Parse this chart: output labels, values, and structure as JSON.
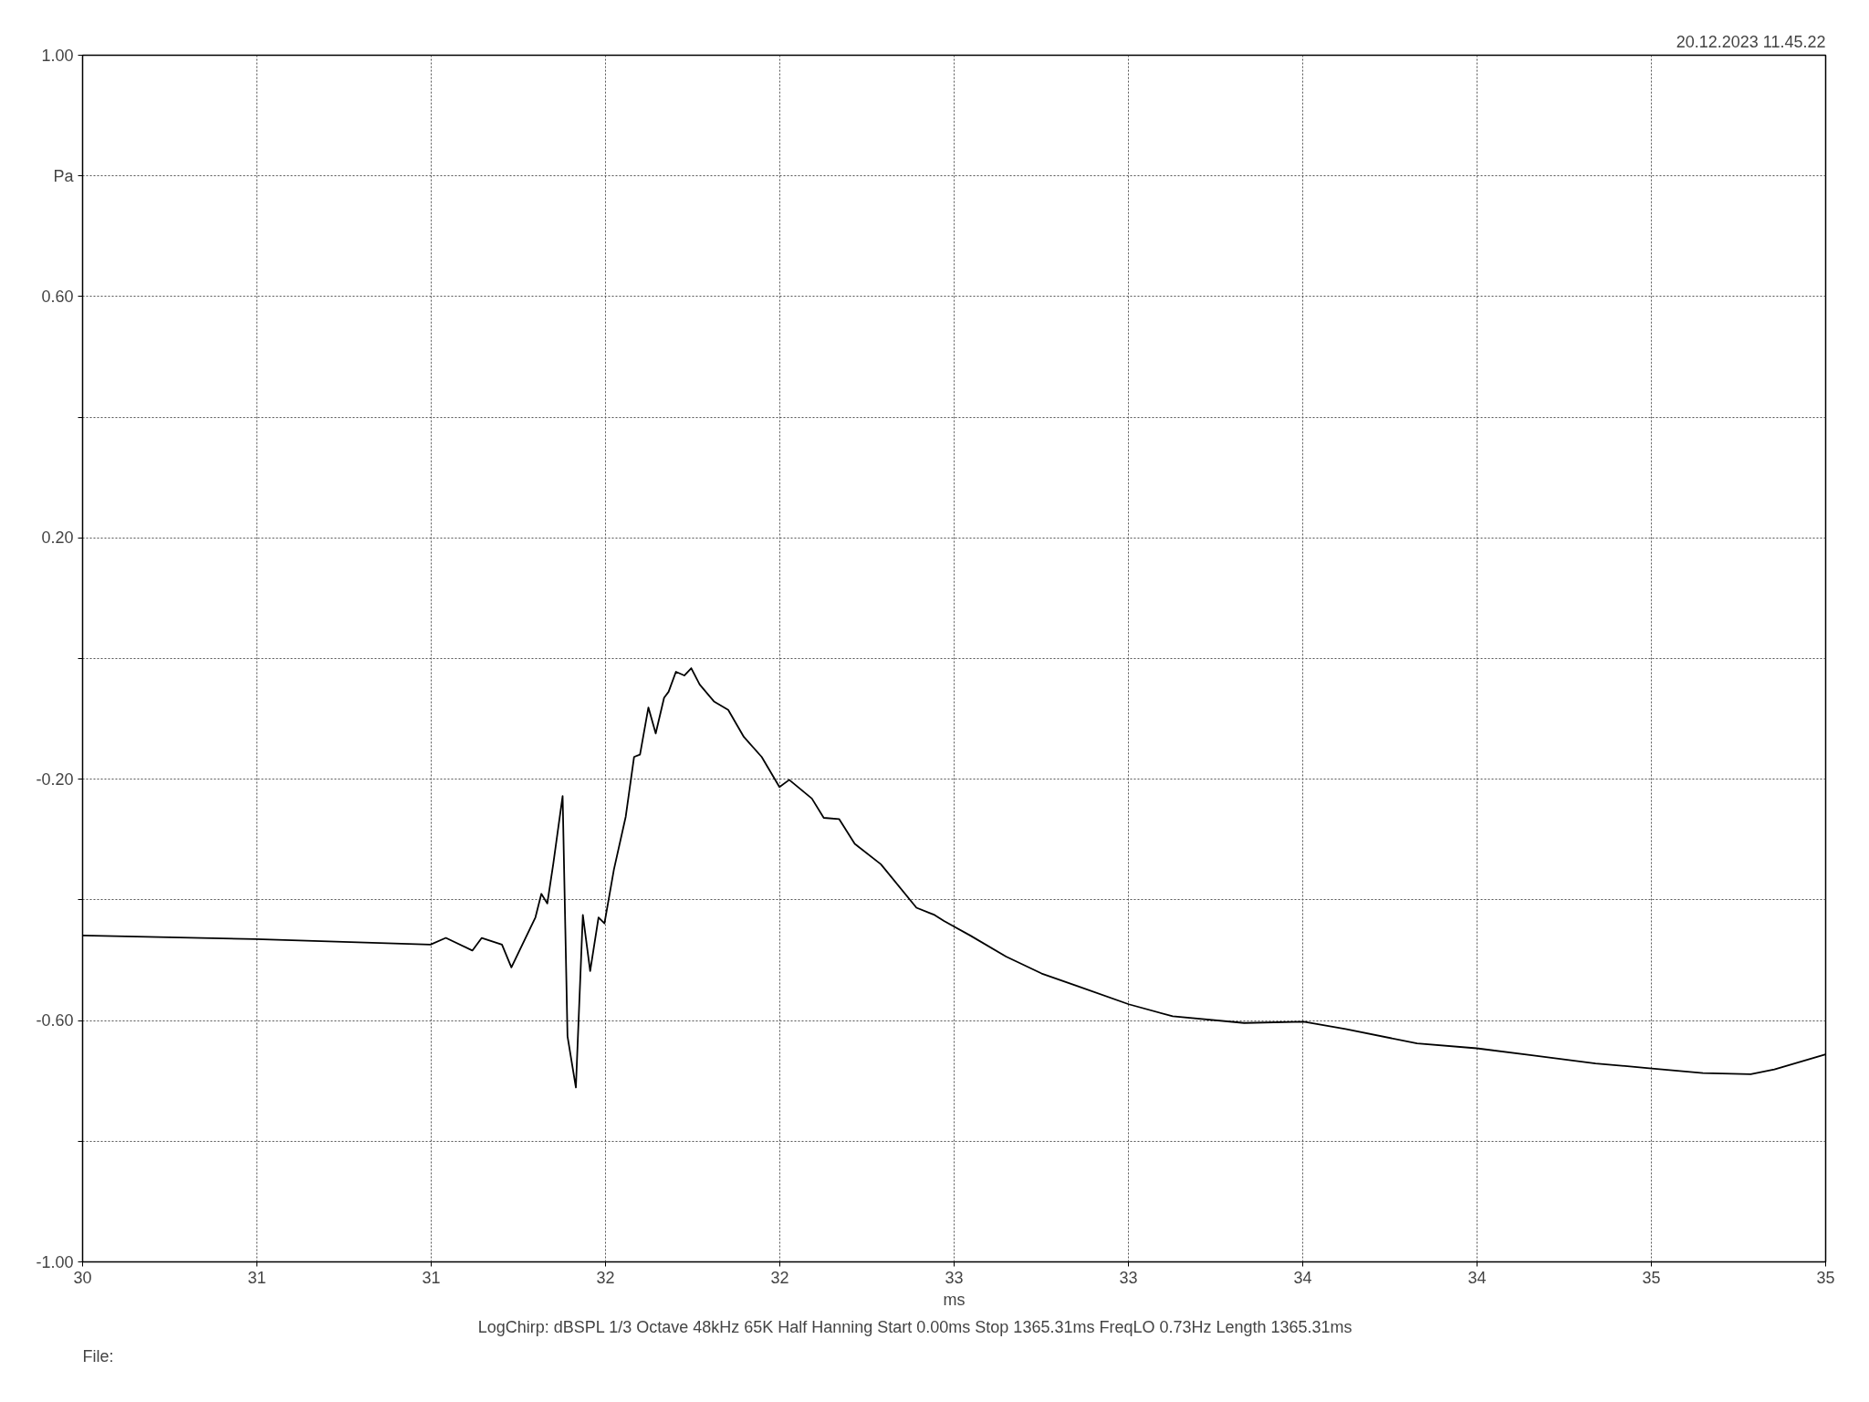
{
  "chart_data": {
    "type": "line",
    "xlabel": "ms",
    "annotations": [
      "20.12.2023 11.45.22",
      "LogChirp:  dBSPL   1/3 Octave   48kHz   65K   Half Hanning   Start 0.00ms   Stop 1365.31ms   FreqLO 0.73Hz   Length 1365.31ms",
      "File:"
    ],
    "xlim": [
      30,
      35
    ],
    "xticks": [
      30,
      {
        "value": 30.5,
        "label": "31"
      },
      31,
      {
        "value": 31.5,
        "label": "32"
      },
      32,
      {
        "value": 32.5,
        "label": "33"
      },
      33,
      {
        "value": 33.5,
        "label": "34"
      },
      34,
      {
        "value": 34.5,
        "label": "35"
      },
      35
    ],
    "ylim": [
      -1,
      1
    ],
    "yticks": [
      {
        "value": -1,
        "label": "-1.00"
      },
      {
        "value": -0.8,
        "label": null
      },
      {
        "value": -0.6,
        "label": "-0.60"
      },
      {
        "value": -0.4,
        "label": null
      },
      {
        "value": -0.2,
        "label": "-0.20"
      },
      {
        "value": 0,
        "label": null
      },
      {
        "value": 0.2,
        "label": "0.20"
      },
      {
        "value": 0.4,
        "label": null
      },
      {
        "value": 0.6,
        "label": "0.60"
      },
      {
        "value": 0.8,
        "label": "Pa"
      },
      {
        "value": 1,
        "label": "1.00"
      }
    ],
    "grid": true,
    "marker": "none",
    "line_style": "solid",
    "series": [
      {
        "color": "#000000",
        "x": [
          30.0,
          30.496,
          30.998,
          31.042,
          31.118,
          31.145,
          31.203,
          31.23,
          31.299,
          31.316,
          31.333,
          31.35,
          31.377,
          31.391,
          31.415,
          31.435,
          31.456,
          31.48,
          31.497,
          31.524,
          31.558,
          31.582,
          31.599,
          31.623,
          31.644,
          31.668,
          31.681,
          31.702,
          31.726,
          31.746,
          31.77,
          31.811,
          31.852,
          31.897,
          31.948,
          31.999,
          32.027,
          32.092,
          32.126,
          32.17,
          32.215,
          32.29,
          32.392,
          32.444,
          32.471,
          32.546,
          32.649,
          32.751,
          32.854,
          33.001,
          33.127,
          33.332,
          33.503,
          33.623,
          33.828,
          33.999,
          34.152,
          34.34,
          34.494,
          34.648,
          34.785,
          34.853,
          35.0
        ],
        "values": [
          -0.459,
          -0.465,
          -0.474,
          -0.463,
          -0.484,
          -0.463,
          -0.474,
          -0.512,
          -0.429,
          -0.39,
          -0.406,
          -0.341,
          -0.228,
          -0.626,
          -0.711,
          -0.425,
          -0.518,
          -0.429,
          -0.439,
          -0.35,
          -0.262,
          -0.163,
          -0.159,
          -0.081,
          -0.124,
          -0.065,
          -0.055,
          -0.022,
          -0.028,
          -0.016,
          -0.043,
          -0.071,
          -0.085,
          -0.13,
          -0.163,
          -0.213,
          -0.201,
          -0.232,
          -0.264,
          -0.266,
          -0.307,
          -0.341,
          -0.413,
          -0.425,
          -0.435,
          -0.459,
          -0.494,
          -0.522,
          -0.543,
          -0.573,
          -0.593,
          -0.604,
          -0.602,
          -0.614,
          -0.638,
          -0.646,
          -0.657,
          -0.671,
          -0.679,
          -0.687,
          -0.689,
          -0.681,
          -0.656
        ]
      }
    ]
  }
}
